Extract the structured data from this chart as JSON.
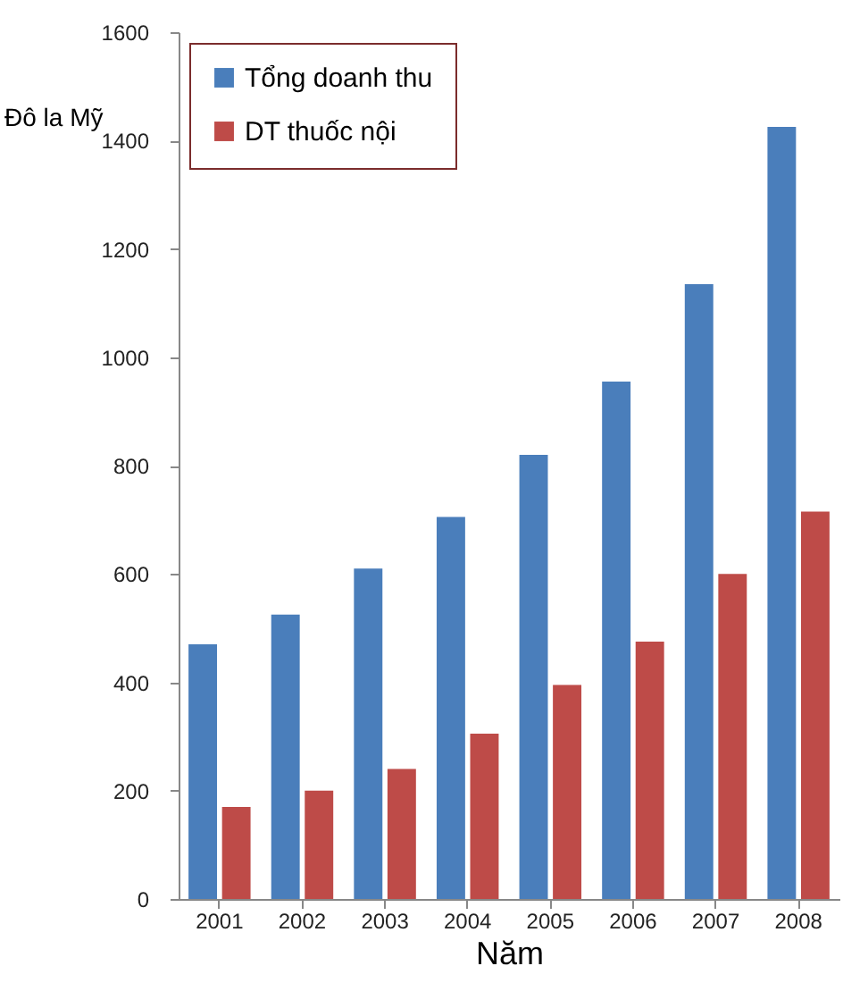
{
  "chart_data": {
    "type": "bar",
    "xlabel": "Năm",
    "ylabel": "Đô la Mỹ",
    "categories": [
      "2001",
      "2002",
      "2003",
      "2004",
      "2005",
      "2006",
      "2007",
      "2008"
    ],
    "series": [
      {
        "name": "Tổng doanh thu",
        "color": "#4a7ebb",
        "values": [
          470,
          525,
          610,
          705,
          820,
          955,
          1135,
          1425
        ]
      },
      {
        "name": "DT thuốc nội",
        "color": "#be4b48",
        "values": [
          170,
          200,
          240,
          305,
          395,
          475,
          600,
          715
        ]
      }
    ],
    "ylim": [
      0,
      1600
    ],
    "yticks": [
      0,
      200,
      400,
      600,
      800,
      1000,
      1200,
      1400,
      1600
    ],
    "grid": false,
    "legend": "top left"
  }
}
